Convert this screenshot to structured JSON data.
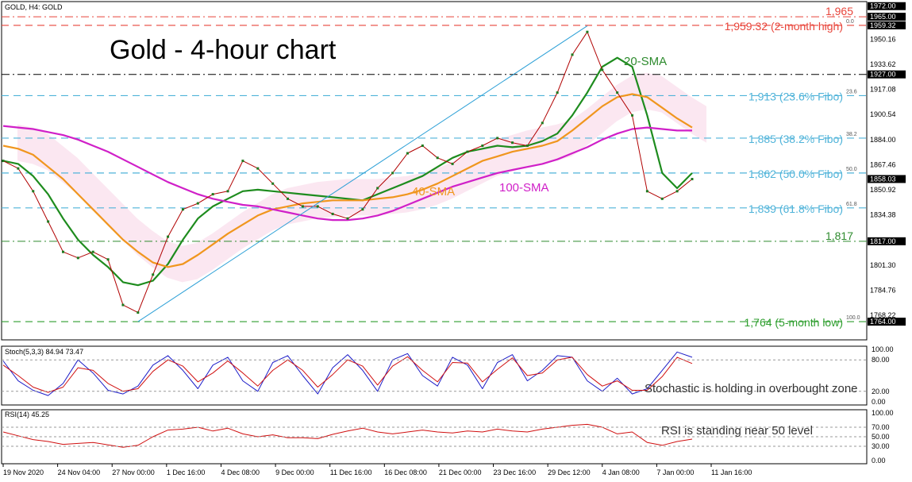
{
  "chart_data": [
    {
      "type": "line",
      "panel": "price",
      "symbol_label": "GOLD, H4: GOLD",
      "title": "Gold - 4-hour chart",
      "ylim": [
        1752,
        1975
      ],
      "y_ticks": [
        1950.16,
        1933.62,
        1917.08,
        1900.54,
        1884.0,
        1867.46,
        1850.92,
        1834.38,
        1801.3,
        1784.76,
        1768.22
      ],
      "highlight_ticks": [
        {
          "value": 1972.0,
          "label": "1972.00"
        },
        {
          "value": 1965.0,
          "label": "1965.00"
        },
        {
          "value": 1959.32,
          "label": "1959.32"
        },
        {
          "value": 1927.0,
          "label": "1927.00"
        },
        {
          "value": 1858.03,
          "label": "1858.03"
        },
        {
          "value": 1817.0,
          "label": "1817.00"
        },
        {
          "value": 1764.0,
          "label": "1764.00"
        }
      ],
      "x_labels": [
        "19 Nov 2020",
        "24 Nov 04:00",
        "27 Nov 00:00",
        "1 Dec 16:00",
        "4 Dec 08:00",
        "9 Dec 00:00",
        "11 Dec 16:00",
        "16 Dec 08:00",
        "21 Dec 00:00",
        "23 Dec 16:00",
        "29 Dec 12:00",
        "4 Jan 08:00",
        "7 Jan 00:00",
        "11 Jan 16:00"
      ],
      "fibo": [
        {
          "level": 1959.32,
          "fib_label": "0.0",
          "annotation": "1,959.32 (2-month high)",
          "color": "#e8443a"
        },
        {
          "level": 1913,
          "fib_label": "23.6",
          "annotation": "1,913 (23.6% Fibo)",
          "color": "#4fb3d9"
        },
        {
          "level": 1885,
          "fib_label": "38.2",
          "annotation": "1,885 (38.2% Fibo)",
          "color": "#4fb3d9"
        },
        {
          "level": 1862,
          "fib_label": "50.0",
          "annotation": "1,862 (50.0% Fibo)",
          "color": "#4fb3d9"
        },
        {
          "level": 1839,
          "fib_label": "61.8",
          "annotation": "1,839 (61.8% Fibo)",
          "color": "#4fb3d9"
        },
        {
          "level": 1764,
          "fib_label": "100.0",
          "annotation": "1,764 (5-month low)",
          "color": "#2e9e2e"
        }
      ],
      "horizontal_levels": [
        {
          "level": 1965,
          "annotation": "1,965",
          "color": "#e8443a"
        },
        {
          "level": 1927,
          "annotation": "",
          "color": "#000000"
        },
        {
          "level": 1817,
          "annotation": "1,817",
          "color": "#2e8b2e"
        }
      ],
      "sma_labels": [
        {
          "text": "20-SMA",
          "color": "#2e8b2e"
        },
        {
          "text": "40-SMA",
          "color": "#f0961e"
        },
        {
          "text": "100-SMA",
          "color": "#d020c8"
        }
      ],
      "series": [
        {
          "name": "20-SMA",
          "color": "#1e8c1e",
          "values": [
            1870,
            1868,
            1860,
            1848,
            1832,
            1818,
            1808,
            1800,
            1790,
            1788,
            1791,
            1802,
            1818,
            1832,
            1840,
            1845,
            1850,
            1851,
            1850,
            1849,
            1848,
            1847,
            1846,
            1845,
            1844,
            1848,
            1852,
            1856,
            1860,
            1866,
            1872,
            1876,
            1878,
            1880,
            1879,
            1880,
            1883,
            1888,
            1900,
            1915,
            1932,
            1938,
            1932,
            1900,
            1862,
            1852,
            1862
          ]
        },
        {
          "name": "40-SMA",
          "color": "#f0961e",
          "values": [
            1880,
            1878,
            1874,
            1866,
            1858,
            1848,
            1838,
            1828,
            1818,
            1810,
            1803,
            1800,
            1802,
            1808,
            1815,
            1822,
            1828,
            1834,
            1838,
            1840,
            1842,
            1843,
            1844,
            1844,
            1844,
            1845,
            1846,
            1848,
            1851,
            1855,
            1860,
            1865,
            1870,
            1873,
            1876,
            1878,
            1880,
            1883,
            1890,
            1898,
            1906,
            1912,
            1914,
            1912,
            1905,
            1898,
            1892
          ]
        },
        {
          "name": "100-SMA",
          "color": "#d020c8",
          "values": [
            1893,
            1892,
            1891,
            1889,
            1887,
            1884,
            1880,
            1876,
            1871,
            1866,
            1861,
            1856,
            1852,
            1848,
            1845,
            1843,
            1841,
            1840,
            1838,
            1836,
            1834,
            1832,
            1831,
            1831,
            1832,
            1834,
            1837,
            1841,
            1845,
            1849,
            1853,
            1856,
            1859,
            1862,
            1864,
            1866,
            1868,
            1871,
            1875,
            1879,
            1884,
            1888,
            1891,
            1892,
            1891,
            1890,
            1890
          ]
        },
        {
          "name": "Close",
          "color": "#b00000",
          "values": [
            1870,
            1865,
            1850,
            1830,
            1810,
            1806,
            1810,
            1805,
            1775,
            1770,
            1795,
            1820,
            1838,
            1842,
            1848,
            1850,
            1870,
            1865,
            1855,
            1845,
            1840,
            1840,
            1835,
            1832,
            1838,
            1852,
            1862,
            1875,
            1880,
            1872,
            1868,
            1876,
            1880,
            1885,
            1882,
            1880,
            1895,
            1915,
            1940,
            1955,
            1930,
            1915,
            1900,
            1850,
            1845,
            1850,
            1858
          ]
        }
      ]
    },
    {
      "type": "line",
      "panel": "stochastic",
      "label": "Stoch(5,3,3) 84.94 73.47",
      "annotation": "Stochastic is holding in overbought zone",
      "ylim": [
        0,
        100
      ],
      "y_ticks": [
        100.0,
        80.0,
        20.0,
        0.0
      ],
      "tick_labels": [
        "100.00",
        "80.00",
        "20.00",
        "0.00"
      ],
      "series": [
        {
          "name": "%K",
          "color": "#1c1cc8",
          "values": [
            78,
            40,
            22,
            12,
            35,
            80,
            55,
            22,
            15,
            30,
            70,
            88,
            60,
            25,
            70,
            85,
            40,
            20,
            75,
            88,
            50,
            15,
            65,
            90,
            60,
            20,
            80,
            92,
            50,
            30,
            85,
            70,
            25,
            75,
            90,
            40,
            60,
            88,
            85,
            40,
            20,
            45,
            15,
            25,
            60,
            95,
            85
          ]
        },
        {
          "name": "%D",
          "color": "#d01010",
          "values": [
            70,
            50,
            28,
            18,
            28,
            65,
            60,
            35,
            20,
            25,
            58,
            80,
            68,
            38,
            55,
            78,
            55,
            30,
            60,
            80,
            60,
            28,
            52,
            80,
            68,
            32,
            68,
            86,
            60,
            38,
            75,
            74,
            38,
            62,
            84,
            50,
            55,
            80,
            85,
            52,
            30,
            40,
            22,
            22,
            48,
            85,
            73
          ]
        }
      ]
    },
    {
      "type": "line",
      "panel": "rsi",
      "label": "RSI(14) 45.25",
      "annotation": "RSI is standing near 50 level",
      "ylim": [
        0,
        100
      ],
      "y_ticks": [
        100.0,
        70.0,
        50.0,
        30.0,
        0.0
      ],
      "tick_labels": [
        "100.00",
        "70.00",
        "50.00",
        "30.00",
        "0.00"
      ],
      "series": [
        {
          "name": "RSI",
          "color": "#d01010",
          "values": [
            60,
            52,
            44,
            40,
            34,
            36,
            38,
            33,
            28,
            32,
            50,
            64,
            66,
            70,
            62,
            68,
            56,
            50,
            54,
            48,
            48,
            46,
            55,
            62,
            68,
            60,
            56,
            60,
            64,
            60,
            58,
            62,
            60,
            66,
            62,
            60,
            66,
            70,
            74,
            76,
            70,
            56,
            60,
            38,
            32,
            40,
            45
          ]
        }
      ]
    }
  ]
}
